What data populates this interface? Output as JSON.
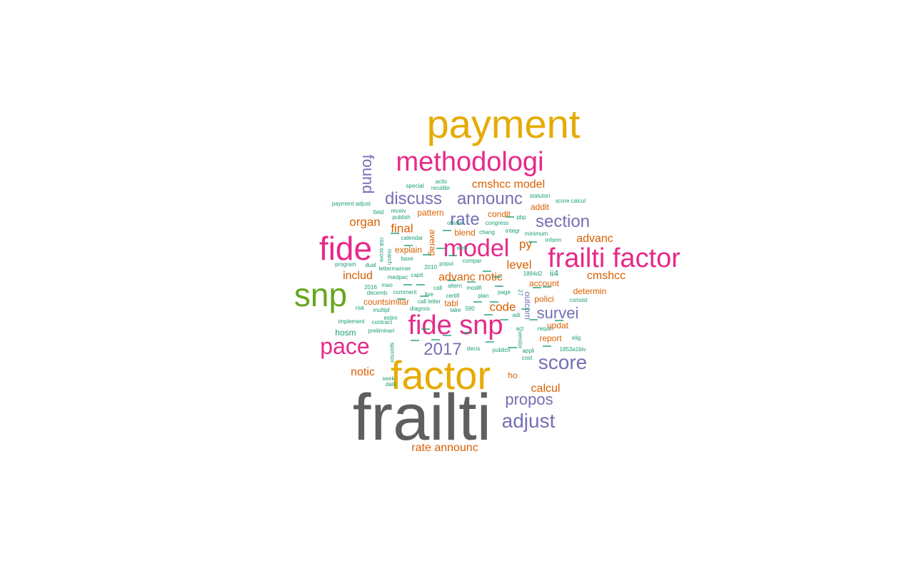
{
  "palette": {
    "gray": "#5f5f5f",
    "gold": "#e6ab02",
    "magenta": "#e7298a",
    "purple": "#7570b3",
    "orange": "#d95f02",
    "green": "#66a61e",
    "teal": "#1b9e77"
  },
  "words": [
    {
      "text": "frailti",
      "freq": 100,
      "color": "gray"
    },
    {
      "text": "payment",
      "freq": 55,
      "color": "gold"
    },
    {
      "text": "factor",
      "freq": 55,
      "color": "gold"
    },
    {
      "text": "fide",
      "freq": 46,
      "color": "magenta"
    },
    {
      "text": "snp",
      "freq": 46,
      "color": "green"
    },
    {
      "text": "methodologi",
      "freq": 38,
      "color": "magenta"
    },
    {
      "text": "frailti factor",
      "freq": 38,
      "color": "magenta"
    },
    {
      "text": "fide snp",
      "freq": 38,
      "color": "magenta"
    },
    {
      "text": "model",
      "freq": 36,
      "color": "magenta"
    },
    {
      "text": "pace",
      "freq": 32,
      "color": "magenta"
    },
    {
      "text": "score",
      "freq": 28,
      "color": "purple"
    },
    {
      "text": "adjust",
      "freq": 28,
      "color": "purple"
    },
    {
      "text": "announc",
      "freq": 26,
      "color": "purple"
    },
    {
      "text": "rate",
      "freq": 26,
      "color": "purple"
    },
    {
      "text": "section",
      "freq": 24,
      "color": "purple"
    },
    {
      "text": "discuss",
      "freq": 24,
      "color": "purple"
    },
    {
      "text": "2017",
      "freq": 24,
      "color": "purple"
    },
    {
      "text": "survei",
      "freq": 24,
      "color": "purple"
    },
    {
      "text": "propos",
      "freq": 24,
      "color": "purple"
    },
    {
      "text": "found",
      "freq": 22,
      "color": "purple"
    },
    {
      "text": "cmshcc model",
      "freq": 17,
      "color": "orange"
    },
    {
      "text": "organ",
      "freq": 18,
      "color": "orange"
    },
    {
      "text": "final",
      "freq": 18,
      "color": "orange"
    },
    {
      "text": "advanc",
      "freq": 17,
      "color": "orange"
    },
    {
      "text": "py",
      "freq": 17,
      "color": "orange"
    },
    {
      "text": "level",
      "freq": 17,
      "color": "orange"
    },
    {
      "text": "includ",
      "freq": 17,
      "color": "orange"
    },
    {
      "text": "advanc notic",
      "freq": 17,
      "color": "orange"
    },
    {
      "text": "cmshcc",
      "freq": 17,
      "color": "orange"
    },
    {
      "text": "code",
      "freq": 17,
      "color": "orange"
    },
    {
      "text": "notic",
      "freq": 16,
      "color": "orange"
    },
    {
      "text": "calcul",
      "freq": 16,
      "color": "orange"
    },
    {
      "text": "rate announc",
      "freq": 16,
      "color": "orange"
    },
    {
      "text": "explain",
      "freq": 12,
      "color": "orange"
    },
    {
      "text": "averag",
      "freq": 12,
      "color": "orange"
    },
    {
      "text": "condit",
      "freq": 12,
      "color": "orange"
    },
    {
      "text": "addit",
      "freq": 12,
      "color": "orange"
    },
    {
      "text": "pattern",
      "freq": 12,
      "color": "orange"
    },
    {
      "text": "blend",
      "freq": 12,
      "color": "orange"
    },
    {
      "text": "account",
      "freq": 12,
      "color": "orange"
    },
    {
      "text": "determin",
      "freq": 12,
      "color": "orange"
    },
    {
      "text": "polici",
      "freq": 12,
      "color": "orange"
    },
    {
      "text": "countsimilar",
      "freq": 12,
      "color": "orange"
    },
    {
      "text": "tabl",
      "freq": 12,
      "color": "orange"
    },
    {
      "text": "outcom",
      "freq": 12,
      "color": "purple"
    },
    {
      "text": "updat",
      "freq": 12,
      "color": "orange"
    },
    {
      "text": "report",
      "freq": 12,
      "color": "orange"
    },
    {
      "text": "ho",
      "freq": 12,
      "color": "orange"
    },
    {
      "text": "ii4",
      "freq": 12,
      "color": "teal"
    },
    {
      "text": "hosm",
      "freq": 12,
      "color": "teal"
    },
    {
      "text": "payment adjust",
      "freq": 8,
      "color": "teal"
    },
    {
      "text": "special",
      "freq": 8,
      "color": "teal"
    },
    {
      "text": "activ",
      "freq": 8,
      "color": "teal"
    },
    {
      "text": "recalibr",
      "freq": 8,
      "color": "teal"
    },
    {
      "text": "statutori",
      "freq": 8,
      "color": "teal"
    },
    {
      "text": "score calcul",
      "freq": 8,
      "color": "teal"
    },
    {
      "text": "field",
      "freq": 8,
      "color": "teal"
    },
    {
      "text": "receiv",
      "freq": 8,
      "color": "teal"
    },
    {
      "text": "publish",
      "freq": 8,
      "color": "teal"
    },
    {
      "text": "pbp",
      "freq": 8,
      "color": "teal"
    },
    {
      "text": "obtain",
      "freq": 8,
      "color": "teal"
    },
    {
      "text": "congress",
      "freq": 8,
      "color": "teal"
    },
    {
      "text": "integr",
      "freq": 8,
      "color": "teal"
    },
    {
      "text": "chang",
      "freq": 8,
      "color": "teal"
    },
    {
      "text": "minimum",
      "freq": 8,
      "color": "teal"
    },
    {
      "text": "calendar",
      "freq": 8,
      "color": "teal"
    },
    {
      "text": "risk score",
      "freq": 8,
      "color": "teal"
    },
    {
      "text": "inform",
      "freq": 8,
      "color": "teal"
    },
    {
      "text": "base",
      "freq": 8,
      "color": "teal"
    },
    {
      "text": "compar",
      "freq": 8,
      "color": "teal"
    },
    {
      "text": "march",
      "freq": 8,
      "color": "teal"
    },
    {
      "text": "popul",
      "freq": 8,
      "color": "teal"
    },
    {
      "text": "program",
      "freq": 8,
      "color": "teal"
    },
    {
      "text": "dual",
      "freq": 8,
      "color": "teal"
    },
    {
      "text": "lettermanner",
      "freq": 8,
      "color": "teal"
    },
    {
      "text": "2010",
      "freq": 8,
      "color": "teal"
    },
    {
      "text": "1894d2",
      "freq": 8,
      "color": "teal"
    },
    {
      "text": "medpac",
      "freq": 8,
      "color": "teal"
    },
    {
      "text": "capit",
      "freq": 8,
      "color": "teal"
    },
    {
      "text": "mao",
      "freq": 8,
      "color": "teal"
    },
    {
      "text": "call",
      "freq": 8,
      "color": "teal"
    },
    {
      "text": "altern",
      "freq": 8,
      "color": "teal"
    },
    {
      "text": "modifi",
      "freq": 8,
      "color": "teal"
    },
    {
      "text": "2016",
      "freq": 8,
      "color": "teal"
    },
    {
      "text": "decemb",
      "freq": 8,
      "color": "teal"
    },
    {
      "text": "comment",
      "freq": 8,
      "color": "teal"
    },
    {
      "text": "live",
      "freq": 8,
      "color": "teal"
    },
    {
      "text": "plan",
      "freq": 8,
      "color": "teal"
    },
    {
      "text": "page",
      "freq": 8,
      "color": "teal"
    },
    {
      "text": "call letter",
      "freq": 8,
      "color": "teal"
    },
    {
      "text": "certifi",
      "freq": 8,
      "color": "teal"
    },
    {
      "text": "27",
      "freq": 8,
      "color": "teal"
    },
    {
      "text": "risk",
      "freq": 8,
      "color": "teal"
    },
    {
      "text": "multipl",
      "freq": 8,
      "color": "teal"
    },
    {
      "text": "diagnos",
      "freq": 8,
      "color": "teal"
    },
    {
      "text": "take",
      "freq": 8,
      "color": "teal"
    },
    {
      "text": "590",
      "freq": 8,
      "color": "teal"
    },
    {
      "text": "adi",
      "freq": 8,
      "color": "teal"
    },
    {
      "text": "consist",
      "freq": 8,
      "color": "teal"
    },
    {
      "text": "implement",
      "freq": 8,
      "color": "teal"
    },
    {
      "text": "contract",
      "freq": 8,
      "color": "teal"
    },
    {
      "text": "estim",
      "freq": 8,
      "color": "teal"
    },
    {
      "text": "act",
      "freq": 8,
      "color": "teal"
    },
    {
      "text": "requir",
      "freq": 8,
      "color": "teal"
    },
    {
      "text": "preliminari",
      "freq": 8,
      "color": "teal"
    },
    {
      "text": "elig",
      "freq": 8,
      "color": "teal"
    },
    {
      "text": "vendor",
      "freq": 8,
      "color": "teal"
    },
    {
      "text": "decis",
      "freq": 8,
      "color": "teal"
    },
    {
      "text": "publicli",
      "freq": 8,
      "color": "teal"
    },
    {
      "text": "appli",
      "freq": 8,
      "color": "teal"
    },
    {
      "text": "1853a1biv",
      "freq": 8,
      "color": "teal"
    },
    {
      "text": "sponsor",
      "freq": 8,
      "color": "teal"
    },
    {
      "text": "cost",
      "freq": 8,
      "color": "teal"
    },
    {
      "text": "seek",
      "freq": 8,
      "color": "teal"
    },
    {
      "text": "daili",
      "freq": 8,
      "color": "teal"
    },
    {
      "text": "web",
      "freq": 8,
      "color": "teal"
    }
  ]
}
